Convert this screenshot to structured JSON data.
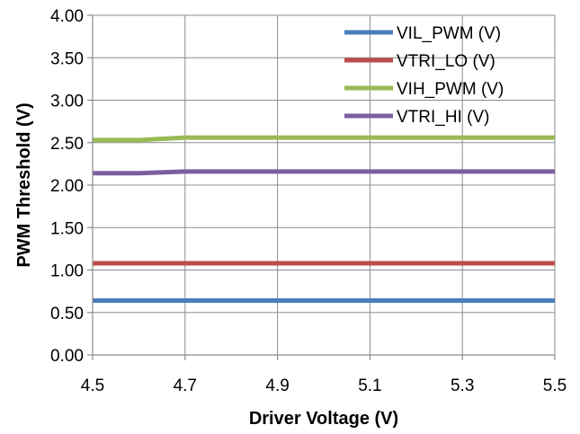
{
  "chart_data": {
    "type": "line",
    "title": "",
    "xlabel": "Driver Voltage (V)",
    "ylabel": "PWM Threshold (V)",
    "xlim": [
      4.5,
      5.5
    ],
    "ylim": [
      0,
      4
    ],
    "x_ticks": [
      "4.5",
      "4.7",
      "4.9",
      "5.1",
      "5.3",
      "5.5"
    ],
    "y_ticks": [
      "0.00",
      "0.50",
      "1.00",
      "1.50",
      "2.00",
      "2.50",
      "3.00",
      "3.50",
      "4.00"
    ],
    "grid": true,
    "legend_position": "top-right",
    "series": [
      {
        "name": "VIL_PWM (V)",
        "color": "#4a7ebb",
        "x": [
          4.5,
          4.6,
          4.7,
          4.8,
          4.9,
          5.0,
          5.1,
          5.2,
          5.3,
          5.4,
          5.5
        ],
        "y": [
          0.64,
          0.64,
          0.64,
          0.64,
          0.64,
          0.64,
          0.64,
          0.64,
          0.64,
          0.64,
          0.64
        ]
      },
      {
        "name": "VTRI_LO (V)",
        "color": "#be4b48",
        "x": [
          4.5,
          4.6,
          4.7,
          4.8,
          4.9,
          5.0,
          5.1,
          5.2,
          5.3,
          5.4,
          5.5
        ],
        "y": [
          1.08,
          1.08,
          1.08,
          1.08,
          1.08,
          1.08,
          1.08,
          1.08,
          1.08,
          1.08,
          1.08
        ]
      },
      {
        "name": "VIH_PWM (V)",
        "color": "#98b954",
        "x": [
          4.5,
          4.6,
          4.7,
          4.8,
          4.9,
          5.0,
          5.1,
          5.2,
          5.3,
          5.4,
          5.5
        ],
        "y": [
          2.53,
          2.53,
          2.56,
          2.56,
          2.56,
          2.56,
          2.56,
          2.56,
          2.56,
          2.56,
          2.56
        ]
      },
      {
        "name": "VTRI_HI (V)",
        "color": "#7d5fa0",
        "x": [
          4.5,
          4.6,
          4.7,
          4.8,
          4.9,
          5.0,
          5.1,
          5.2,
          5.3,
          5.4,
          5.5
        ],
        "y": [
          2.14,
          2.14,
          2.16,
          2.16,
          2.16,
          2.16,
          2.16,
          2.16,
          2.16,
          2.16,
          2.16
        ]
      }
    ]
  }
}
